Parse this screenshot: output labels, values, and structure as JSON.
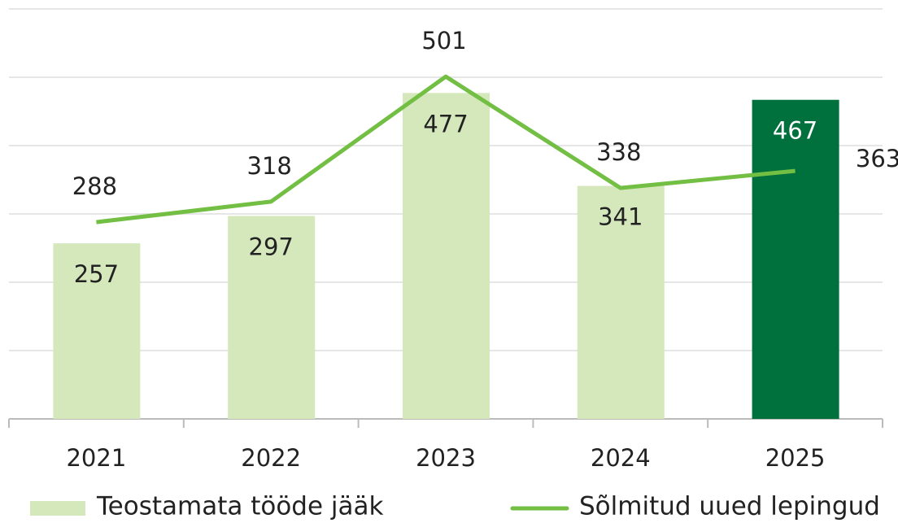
{
  "chart_data": {
    "type": "bar_line",
    "categories": [
      "2021",
      "2022",
      "2023",
      "2024",
      "2025"
    ],
    "series": [
      {
        "name": "Teostamata tööde jääk",
        "type": "bar",
        "color": "#d5e8bc",
        "colors": [
          "#d5e8bc",
          "#d5e8bc",
          "#d5e8bc",
          "#d5e8bc",
          "#00703c"
        ],
        "values": [
          257,
          297,
          477,
          341,
          467
        ]
      },
      {
        "name": "Sõlmitud uued lepingud",
        "type": "line",
        "color": "#72bf44",
        "values": [
          288,
          318,
          501,
          338,
          363
        ]
      }
    ],
    "ylim": [
      0,
      600
    ],
    "yticks": [
      0,
      100,
      200,
      300,
      400,
      500,
      600
    ],
    "grid": true,
    "legend": "bottom"
  }
}
